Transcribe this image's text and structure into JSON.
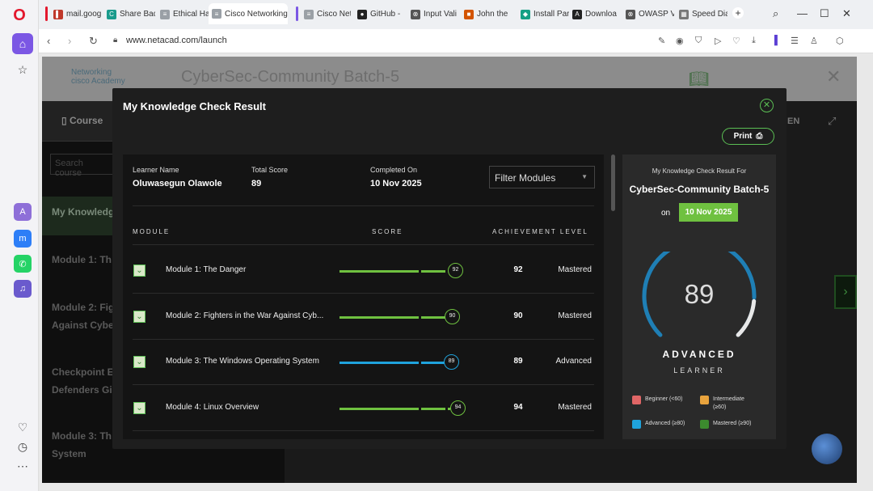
{
  "browser": {
    "tabs": [
      {
        "label": "mail.goog",
        "fav_color": "#c0392b"
      },
      {
        "label": "Share Bad",
        "fav_color": "#1a9b8c",
        "fav_char": "C"
      },
      {
        "label": "Ethical Ha",
        "fav_color": "#9aa0a6",
        "fav_char": "≡"
      },
      {
        "label": "Cisco Networking",
        "fav_color": "#9aa0a6",
        "fav_char": "≡",
        "active": true
      },
      {
        "label": "Cisco Net",
        "fav_color": "#9aa0a6",
        "fav_char": "≡"
      },
      {
        "label": "GitHub -",
        "fav_color": "#222",
        "fav_char": "●"
      },
      {
        "label": "Input Vali",
        "fav_color": "#555",
        "fav_char": "⊗"
      },
      {
        "label": "John the",
        "fav_color": "#d35400",
        "fav_char": "■"
      },
      {
        "label": "Install Par",
        "fav_color": "#16a085",
        "fav_char": "◆"
      },
      {
        "label": "Downloa",
        "fav_color": "#222",
        "fav_char": "A"
      },
      {
        "label": "OWASP V",
        "fav_color": "#555",
        "fav_char": "⊗"
      },
      {
        "label": "Speed Dia",
        "fav_color": "#777",
        "fav_char": "▦"
      }
    ],
    "url": "www.netacad.com/launch"
  },
  "background_page": {
    "academy_line1": "Networking",
    "academy_line2": "Academy",
    "cisco": "cisco",
    "course_title": "CyberSec-Community Batch-5",
    "course_tab": "Course",
    "lang": "EN",
    "search_placeholder": "Search course",
    "items": [
      "My Knowledg",
      "Module 1: Th",
      "Module 2: Fig",
      "Against Cybe",
      "Checkpoint E",
      "Defenders Gi",
      "Module 3: Th",
      "System"
    ]
  },
  "modal": {
    "title": "My Knowledge Check Result",
    "print_label": "Print",
    "learner_label": "Learner Name",
    "learner_name": "Oluwasegun Olawole",
    "score_label": "Total Score",
    "total_score": "89",
    "completed_label": "Completed On",
    "completed_on": "10 Nov 2025",
    "filter_label": "Filter Modules",
    "col_module": "MODULE",
    "col_score": "SCORE",
    "col_level": "ACHIEVEMENT LEVEL",
    "modules": [
      {
        "name": "Module 1: The Danger",
        "score": 92,
        "level": "Mastered",
        "color": "#6fc140"
      },
      {
        "name": "Module 2: Fighters in the War Against Cyb...",
        "score": 90,
        "level": "Mastered",
        "color": "#6fc140"
      },
      {
        "name": "Module 3: The Windows Operating System",
        "score": 89,
        "level": "Advanced",
        "color": "#1fa3dc"
      },
      {
        "name": "Module 4: Linux Overview",
        "score": 94,
        "level": "Mastered",
        "color": "#6fc140"
      }
    ]
  },
  "summary": {
    "result_for": "My Knowledge Check Result For",
    "course": "CyberSec-Community Batch-5",
    "on": "on",
    "date": "10 Nov 2025",
    "score": "89",
    "score_fraction": 0.89,
    "level": "ADVANCED",
    "learner": "LEARNER",
    "legend": [
      {
        "label": "Beginner (<60)",
        "color": "#e06666"
      },
      {
        "label": "Intermediate (≥60)",
        "color": "#e8a33d"
      },
      {
        "label": "Advanced (≥80)",
        "color": "#1fa3dc"
      },
      {
        "label": "Mastered (≥90)",
        "color": "#3c8a2e"
      }
    ]
  }
}
